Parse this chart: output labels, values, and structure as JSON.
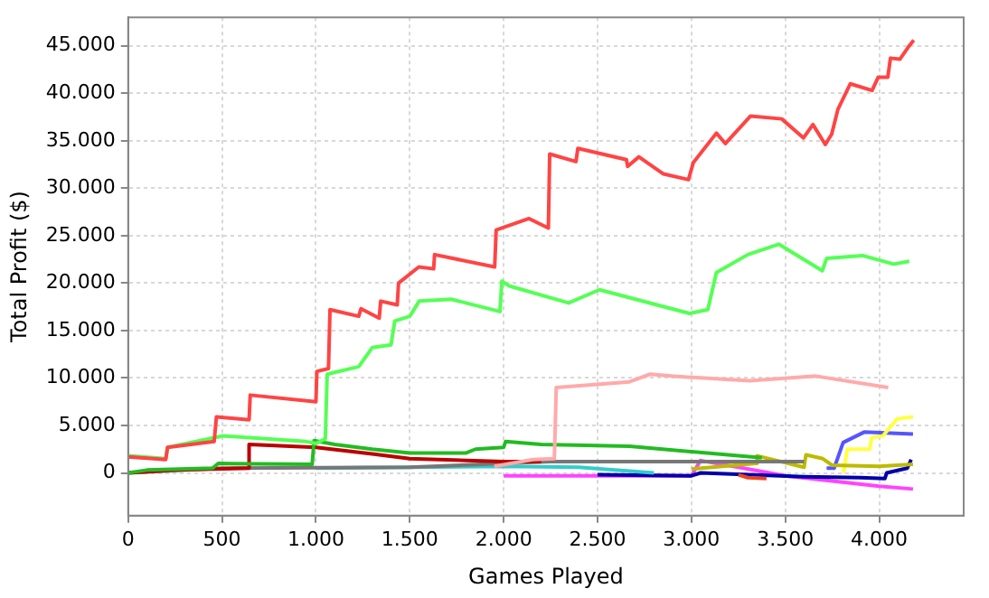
{
  "chart_data": {
    "type": "line",
    "xlabel": "Games Played",
    "ylabel": "Total Profit ($)",
    "grid": true,
    "legend": false,
    "marker": "none",
    "line_style": "solid",
    "xlim": [
      0,
      4450
    ],
    "xticks": [
      0,
      500,
      {
        "value": 1000,
        "label": "1.000"
      },
      {
        "value": 1500,
        "label": "1.500"
      },
      {
        "value": 2000,
        "label": "2.000"
      },
      {
        "value": 2500,
        "label": "2.500"
      },
      {
        "value": 3000,
        "label": "3.000"
      },
      {
        "value": 3500,
        "label": "3.500"
      },
      {
        "value": 4000,
        "label": "4.000"
      }
    ],
    "ylim": [
      -4500,
      48000
    ],
    "yticks": [
      0,
      {
        "value": 5000,
        "label": "5.000"
      },
      {
        "value": 10000,
        "label": "10.000"
      },
      {
        "value": 15000,
        "label": "15.000"
      },
      {
        "value": 20000,
        "label": "20.000"
      },
      {
        "value": 25000,
        "label": "25.000"
      },
      {
        "value": 30000,
        "label": "30.000"
      },
      {
        "value": 35000,
        "label": "35.000"
      },
      {
        "value": 40000,
        "label": "40.000"
      },
      {
        "value": 45000,
        "label": "45.000"
      }
    ],
    "series": [
      {
        "color": "#ff4444",
        "x": [
          0,
          200,
          210,
          458,
          470,
          644,
          650,
          1000,
          1005,
          1067,
          1075,
          1228,
          1240,
          1337,
          1345,
          1433,
          1440,
          1548,
          1627,
          1632,
          1952,
          1960,
          2135,
          2238,
          2245,
          2385,
          2395,
          2654,
          2660,
          2720,
          2851,
          2984,
          3010,
          3133,
          3181,
          3315,
          3481,
          3597,
          3647,
          3713,
          3747,
          3780,
          3846,
          3962,
          3995,
          4046,
          4060,
          4111,
          4160,
          4184
        ],
        "values": [
          1700,
          1400,
          2700,
          3300,
          5900,
          5600,
          8200,
          7500,
          10700,
          11000,
          17200,
          16500,
          17300,
          16300,
          18100,
          17700,
          20000,
          21700,
          21500,
          23000,
          21700,
          25600,
          26800,
          25800,
          33600,
          32800,
          34200,
          33000,
          32300,
          33300,
          31500,
          30900,
          32700,
          35800,
          34700,
          37600,
          37300,
          35300,
          36700,
          34600,
          35700,
          38300,
          41000,
          40300,
          41700,
          41700,
          43700,
          43600,
          45000,
          45600
        ]
      },
      {
        "color": "#55ff55",
        "x": [
          0,
          200,
          210,
          506,
          950,
          1000,
          1050,
          1060,
          1228,
          1300,
          1400,
          1420,
          1500,
          1550,
          1721,
          1980,
          1990,
          2029,
          2346,
          2510,
          2990,
          3087,
          3133,
          3300,
          3465,
          3697,
          3720,
          3911,
          4077,
          4160
        ],
        "values": [
          1800,
          1500,
          2700,
          3900,
          3300,
          3100,
          3600,
          10400,
          11200,
          13200,
          13500,
          16000,
          16500,
          18100,
          18300,
          17000,
          20200,
          19700,
          17900,
          19300,
          16800,
          17200,
          21100,
          23000,
          24100,
          21300,
          22600,
          22900,
          22000,
          22300
        ]
      },
      {
        "color": "#ffaaaa",
        "x": [
          1950,
          2155,
          2270,
          2280,
          2670,
          2780,
          2894,
          3310,
          3663,
          4048
        ],
        "values": [
          700,
          1400,
          1500,
          9000,
          9600,
          10400,
          10200,
          9700,
          10200,
          9000
        ]
      },
      {
        "color": "#22bb22",
        "x": [
          0,
          100,
          450,
          480,
          980,
          990,
          1100,
          1300,
          1500,
          1800,
          1850,
          2000,
          2010,
          2200,
          2670,
          3375
        ],
        "values": [
          0,
          300,
          500,
          1000,
          900,
          3400,
          3000,
          2500,
          2100,
          2100,
          2500,
          2700,
          3300,
          3000,
          2800,
          1600
        ]
      },
      {
        "color": "#bb0000",
        "x": [
          0,
          250,
          640,
          644,
          1000,
          1300,
          1500,
          2000,
          2200
        ],
        "values": [
          0,
          300,
          500,
          3000,
          2700,
          2000,
          1500,
          1200,
          1200
        ]
      },
      {
        "color": "#777777",
        "x": [
          0,
          500,
          1500,
          2000,
          2250,
          3600
        ],
        "values": [
          0,
          500,
          600,
          1000,
          1200,
          1200
        ]
      },
      {
        "color": "#33cccc",
        "x": [
          1000,
          1500,
          2000,
          2400,
          2800
        ],
        "values": [
          500,
          600,
          700,
          600,
          0
        ]
      },
      {
        "color": "#ee4422",
        "x": [
          3250,
          3300,
          3400
        ],
        "values": [
          -200,
          -500,
          -600
        ]
      },
      {
        "color": "#bbbb00",
        "x": [
          3000,
          3343,
          3350,
          3600,
          3610,
          3700,
          3750,
          4000,
          4180
        ],
        "values": [
          400,
          1000,
          1800,
          600,
          1900,
          1500,
          800,
          700,
          900
        ]
      },
      {
        "color": "#ffff44",
        "x": [
          3810,
          3830,
          3950,
          3960,
          4020,
          4096,
          4180
        ],
        "values": [
          0,
          2500,
          2500,
          3700,
          3900,
          5700,
          5900
        ]
      },
      {
        "color": "#5555ff",
        "x": [
          3720,
          3760,
          3808,
          3920,
          4180
        ],
        "values": [
          500,
          500,
          3200,
          4300,
          4100
        ]
      },
      {
        "color": "#0000aa",
        "x": [
          2500,
          3000,
          3050,
          3600,
          3900,
          4030,
          4040,
          4150,
          4170
        ],
        "values": [
          -200,
          -300,
          0,
          -400,
          -500,
          -600,
          0,
          500,
          1400
        ]
      },
      {
        "color": "#ff44ff",
        "x": [
          2000,
          3000,
          3048,
          3250,
          3500,
          4000,
          4180
        ],
        "values": [
          -300,
          -300,
          1300,
          600,
          -300,
          -1400,
          -1700
        ]
      }
    ]
  }
}
